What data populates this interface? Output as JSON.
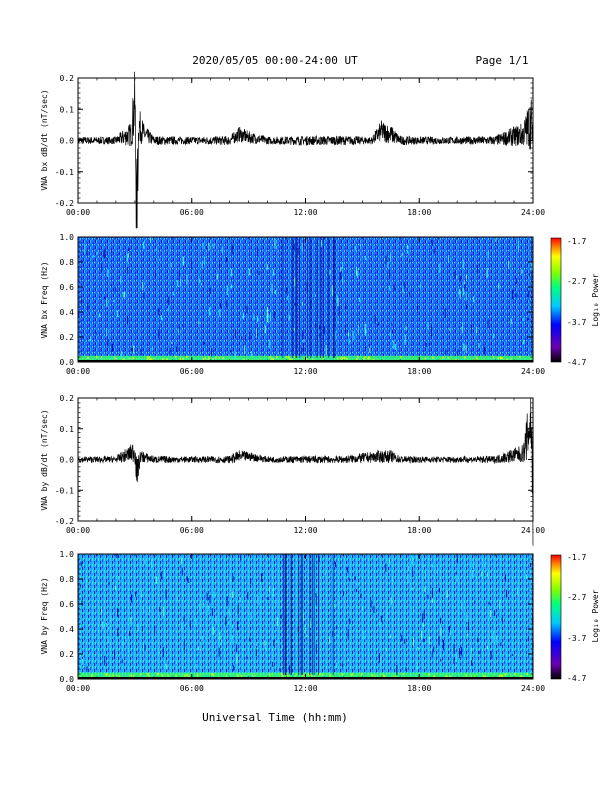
{
  "page": {
    "title": "2020/05/05  00:00-24:00 UT",
    "page_label": "Page 1/1"
  },
  "xaxis": {
    "label": "Universal Time (hh:mm)",
    "ticks": [
      "00:00",
      "06:00",
      "12:00",
      "18:00",
      "24:00"
    ]
  },
  "colorbar": {
    "label": "Log₁₀ Power",
    "ticks": [
      "-1.7",
      "-2.7",
      "-3.7",
      "-4.7"
    ]
  },
  "chart_data": [
    {
      "type": "line",
      "ylabel": "VNA bx dB/dt (nT/sec)",
      "xlim": [
        0,
        24
      ],
      "ylim": [
        -0.2,
        0.2
      ],
      "yticks": [
        "0.2",
        "0.1",
        "0.0",
        "-0.1",
        "-0.2"
      ],
      "grid": false,
      "series": [
        {
          "x": [
            0,
            1,
            2,
            2.8,
            3.0,
            3.1,
            3.2,
            3.5,
            4,
            6,
            8,
            8.5,
            9,
            10,
            12,
            14,
            15.5,
            16,
            16.5,
            17,
            18,
            20,
            22,
            23.5,
            23.9,
            24
          ],
          "y": [
            0.0,
            0.0,
            0.0,
            0.02,
            0.12,
            -0.26,
            0.05,
            0.02,
            0.0,
            0.0,
            0.0,
            0.02,
            0.01,
            0.0,
            0.0,
            0.0,
            0.0,
            0.03,
            0.02,
            0.0,
            0.0,
            0.0,
            0.0,
            0.02,
            0.06,
            0.0
          ],
          "envelope": [
            0.012,
            0.012,
            0.012,
            0.04,
            0.12,
            0.2,
            0.06,
            0.03,
            0.015,
            0.012,
            0.015,
            0.025,
            0.02,
            0.012,
            0.015,
            0.015,
            0.012,
            0.035,
            0.03,
            0.015,
            0.012,
            0.012,
            0.015,
            0.04,
            0.09,
            0.03
          ]
        }
      ]
    },
    {
      "type": "heatmap",
      "ylabel": "VNA bx Freq (Hz)",
      "xlim": [
        0,
        24
      ],
      "ylim": [
        0.0,
        1.0
      ],
      "yticks": [
        "1.0",
        "0.8",
        "0.6",
        "0.4",
        "0.2",
        "0.0"
      ],
      "zlim": [
        -4.7,
        -1.7
      ],
      "description_values": {
        "background_level": -4.0,
        "low_freq_level": -2.9,
        "low_freq_band": [
          0.0,
          0.05
        ]
      }
    },
    {
      "type": "line",
      "ylabel": "VNA by dB/dt (nT/sec)",
      "xlim": [
        0,
        24
      ],
      "ylim": [
        -0.2,
        0.2
      ],
      "yticks": [
        "0.2",
        "0.1",
        "0.0",
        "-0.1",
        "-0.2"
      ],
      "grid": false,
      "series": [
        {
          "x": [
            0,
            1,
            2,
            2.8,
            3.0,
            3.1,
            3.3,
            4,
            6,
            8,
            8.5,
            9,
            10,
            12,
            14,
            16,
            16.5,
            17,
            18,
            20,
            22,
            23.5,
            23.9,
            24
          ],
          "y": [
            0.0,
            0.0,
            0.0,
            0.02,
            0.03,
            -0.05,
            0.01,
            0.0,
            0.0,
            0.0,
            0.01,
            0.01,
            0.0,
            0.0,
            0.0,
            0.01,
            0.01,
            0.0,
            0.0,
            0.0,
            0.0,
            0.02,
            0.13,
            -0.16
          ],
          "envelope": [
            0.01,
            0.01,
            0.01,
            0.03,
            0.04,
            0.05,
            0.02,
            0.012,
            0.01,
            0.012,
            0.02,
            0.015,
            0.01,
            0.012,
            0.012,
            0.02,
            0.02,
            0.012,
            0.01,
            0.01,
            0.012,
            0.03,
            0.13,
            0.16
          ]
        }
      ]
    },
    {
      "type": "heatmap",
      "ylabel": "VNA by Freq (Hz)",
      "xlim": [
        0,
        24
      ],
      "ylim": [
        0.0,
        1.0
      ],
      "yticks": [
        "1.0",
        "0.8",
        "0.6",
        "0.4",
        "0.2",
        "0.0"
      ],
      "zlim": [
        -4.7,
        -1.7
      ],
      "description_values": {
        "background_level": -3.6,
        "low_freq_level": -2.9,
        "low_freq_band": [
          0.0,
          0.05
        ]
      }
    }
  ]
}
